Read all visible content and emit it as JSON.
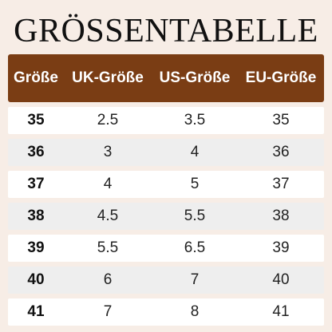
{
  "title": "GRÖSSENTABELLE",
  "colors": {
    "background": "#f7ede6",
    "header": "#7a3d14",
    "row_light": "#ffffff",
    "row_dark": "#eeeeee"
  },
  "table": {
    "headers": [
      "Größe",
      "UK-Größe",
      "US-Größe",
      "EU-Größe"
    ],
    "rows": [
      [
        "35",
        "2.5",
        "3.5",
        "35"
      ],
      [
        "36",
        "3",
        "4",
        "36"
      ],
      [
        "37",
        "4",
        "5",
        "37"
      ],
      [
        "38",
        "4.5",
        "5.5",
        "38"
      ],
      [
        "39",
        "5.5",
        "6.5",
        "39"
      ],
      [
        "40",
        "6",
        "7",
        "40"
      ],
      [
        "41",
        "7",
        "8",
        "41"
      ]
    ]
  }
}
